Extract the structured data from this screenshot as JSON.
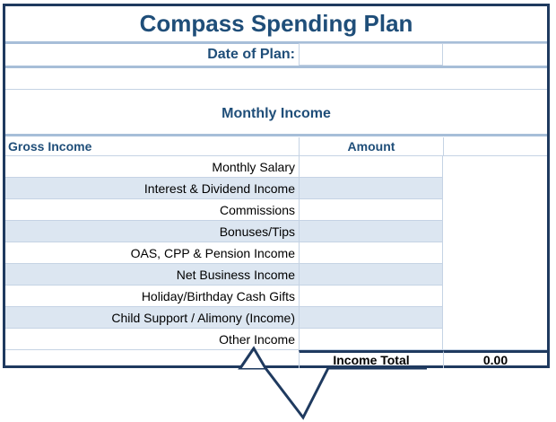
{
  "title": "Compass Spending Plan",
  "date_of_plan": {
    "label": "Date of Plan:",
    "value": ""
  },
  "section_title": "Monthly Income",
  "table": {
    "header_label": "Gross Income",
    "header_amount": "Amount",
    "rows": [
      {
        "label": "Monthly Salary",
        "amount": ""
      },
      {
        "label": "Interest & Dividend Income",
        "amount": ""
      },
      {
        "label": "Commissions",
        "amount": ""
      },
      {
        "label": "Bonuses/Tips",
        "amount": ""
      },
      {
        "label": "OAS, CPP & Pension Income",
        "amount": ""
      },
      {
        "label": "Net Business Income",
        "amount": ""
      },
      {
        "label": "Holiday/Birthday Cash Gifts",
        "amount": ""
      },
      {
        "label": "Child Support / Alimony (Income)",
        "amount": ""
      },
      {
        "label": "Other Income",
        "amount": ""
      }
    ],
    "total_label": "Income Total",
    "total_value": "0.00"
  },
  "colors": {
    "title": "#1f4e79",
    "border": "#1f3a5f",
    "alt_row": "#dce6f1",
    "callout": "#1f3a5f"
  }
}
